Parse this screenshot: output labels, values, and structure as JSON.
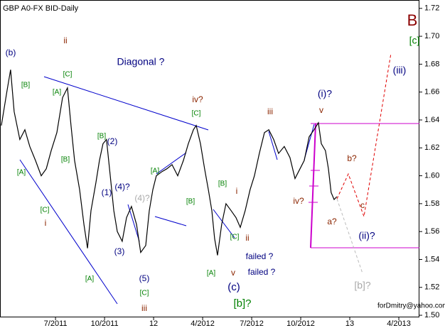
{
  "chart_data": {
    "type": "line",
    "title": "GBP A0-FX BID-Daily",
    "watermark": "forDmitry@yahoo.com",
    "color": "#000000",
    "x": [
      2011.224,
      2011.253,
      2011.271,
      2011.289,
      2011.318,
      2011.344,
      2011.369,
      2011.398,
      2011.427,
      2011.453,
      2011.478,
      2011.507,
      2011.536,
      2011.561,
      2011.579,
      2011.597,
      2011.623,
      2011.645,
      2011.663,
      2011.681,
      2011.706,
      2011.724,
      2011.742,
      2011.76,
      2011.779,
      2011.797,
      2011.815,
      2011.84,
      2011.862,
      2011.887,
      2011.913,
      2011.934,
      2011.96,
      2011.978,
      2011.996,
      2012.014,
      2012.043,
      2012.068,
      2012.094,
      2012.123,
      2012.152,
      2012.177,
      2012.203,
      2012.217,
      2012.239,
      2012.26,
      2012.279,
      2012.297,
      2012.311,
      2012.326,
      2012.347,
      2012.369,
      2012.395,
      2012.42,
      2012.442,
      2012.467,
      2012.492,
      2012.514,
      2012.539,
      2012.565,
      2012.587,
      2012.612,
      2012.637,
      2012.666,
      2012.695,
      2012.721,
      2012.739,
      2012.768,
      2012.793,
      2012.818,
      2012.84,
      2012.855,
      2012.876,
      2012.891,
      2012.905,
      2012.92,
      2012.934
    ],
    "values": [
      1.636,
      1.661,
      1.676,
      1.646,
      1.626,
      1.633,
      1.621,
      1.611,
      1.6,
      1.605,
      1.618,
      1.631,
      1.656,
      1.663,
      1.636,
      1.611,
      1.59,
      1.565,
      1.548,
      1.575,
      1.595,
      1.611,
      1.623,
      1.626,
      1.6,
      1.575,
      1.56,
      1.553,
      1.57,
      1.578,
      1.565,
      1.545,
      1.55,
      1.575,
      1.59,
      1.6,
      1.603,
      1.605,
      1.608,
      1.6,
      1.611,
      1.623,
      1.633,
      1.636,
      1.623,
      1.605,
      1.59,
      1.575,
      1.555,
      1.543,
      1.565,
      1.58,
      1.575,
      1.57,
      1.563,
      1.575,
      1.59,
      1.6,
      1.616,
      1.631,
      1.633,
      1.626,
      1.616,
      1.621,
      1.613,
      1.598,
      1.603,
      1.611,
      1.628,
      1.633,
      1.638,
      1.623,
      1.618,
      1.605,
      1.588,
      1.583,
      1.585
    ],
    "xlim": [
      2011.217,
      2013.355
    ],
    "xticks": [
      {
        "value": 2011.5,
        "label": "7/2011"
      },
      {
        "value": 2011.75,
        "label": "10/2011"
      },
      {
        "value": 2012.0,
        "label": "12"
      },
      {
        "value": 2012.25,
        "label": "4/2012"
      },
      {
        "value": 2012.5,
        "label": "7/2012"
      },
      {
        "value": 2012.75,
        "label": "10/2012"
      },
      {
        "value": 2013.0,
        "label": "13"
      },
      {
        "value": 2013.25,
        "label": "4/2013"
      }
    ],
    "ylim": [
      1.4985,
      1.726
    ],
    "yticks": [
      1.5,
      1.52,
      1.54,
      1.56,
      1.58,
      1.6,
      1.62,
      1.64,
      1.66,
      1.68,
      1.7,
      1.72
    ],
    "ytick_format": 2,
    "annotations": [
      {
        "text": "(b)",
        "color": "#000080"
      },
      {
        "text": "ii",
        "color": "#8b2500"
      },
      {
        "text": "[C]",
        "color": "#008000"
      },
      {
        "text": "[B]",
        "color": "#008000"
      },
      {
        "text": "[A]",
        "color": "#008000"
      },
      {
        "text": "[B]",
        "color": "#008000"
      },
      {
        "text": "[A]",
        "color": "#008000"
      },
      {
        "text": "[C]",
        "color": "#008000"
      },
      {
        "text": "i",
        "color": "#8b2500"
      },
      {
        "text": "[A]",
        "color": "#008000"
      },
      {
        "text": "Diagonal ?",
        "color": "#000080"
      },
      {
        "text": "iv?",
        "color": "#8b2500"
      },
      {
        "text": "[C]",
        "color": "#008000"
      },
      {
        "text": "[B]",
        "color": "#008000"
      },
      {
        "text": "(2)",
        "color": "#000080"
      },
      {
        "text": "(1)",
        "color": "#000080"
      },
      {
        "text": "(4)?",
        "color": "#000080"
      },
      {
        "text": "(4)?",
        "color": "#aaaaaa"
      },
      {
        "text": "(3)",
        "color": "#000080"
      },
      {
        "text": "(5)",
        "color": "#000080"
      },
      {
        "text": "[C]",
        "color": "#008000"
      },
      {
        "text": "iii",
        "color": "#8b2500"
      },
      {
        "text": "[A]",
        "color": "#008000"
      },
      {
        "text": "[B]",
        "color": "#008000"
      },
      {
        "text": "[B]",
        "color": "#008000"
      },
      {
        "text": "i",
        "color": "#8b2500"
      },
      {
        "text": "[C]",
        "color": "#008000"
      },
      {
        "text": "ii",
        "color": "#8b2500"
      },
      {
        "text": "failed ?",
        "color": "#000080"
      },
      {
        "text": "v",
        "color": "#8b2500"
      },
      {
        "text": "failed ?",
        "color": "#000080"
      },
      {
        "text": "[A]",
        "color": "#008000"
      },
      {
        "text": "(c)",
        "color": "#000080"
      },
      {
        "text": "[b]?",
        "color": "#008000"
      },
      {
        "text": "iii",
        "color": "#8b2500"
      },
      {
        "text": "(i)?",
        "color": "#000080"
      },
      {
        "text": "v",
        "color": "#8b2500"
      },
      {
        "text": "iv?",
        "color": "#8b2500"
      },
      {
        "text": "b?",
        "color": "#8b2500"
      },
      {
        "text": "a?",
        "color": "#8b2500"
      },
      {
        "text": "c",
        "color": "#8b2500"
      },
      {
        "text": "(ii)?",
        "color": "#000080"
      },
      {
        "text": "(iii)",
        "color": "#000080"
      },
      {
        "text": "[c]",
        "color": "#008000"
      },
      {
        "text": "B",
        "color": "#8b0000"
      },
      {
        "text": "[b]?",
        "color": "#aaaaaa"
      }
    ]
  }
}
